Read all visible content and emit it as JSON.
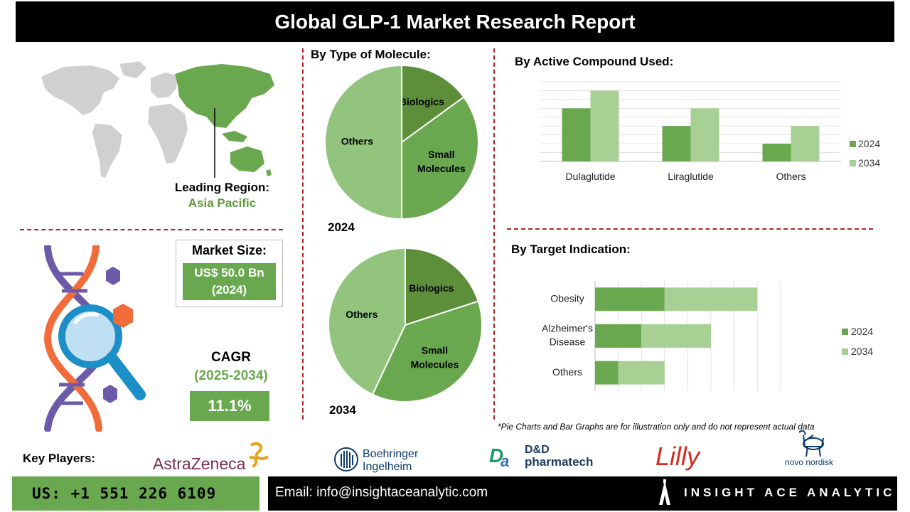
{
  "title": "Global GLP-1 Market Research Report",
  "region": {
    "label": "Leading Region:",
    "value": "Asia Pacific"
  },
  "market_size": {
    "label": "Market Size:",
    "value_line1": "US$ 50.0 Bn",
    "value_line2": "(2024)"
  },
  "cagr": {
    "label": "CAGR",
    "period": "(2025-2034)",
    "value": "11.1%"
  },
  "molecule": {
    "title": "By Type of Molecule:",
    "year_2024": "2024",
    "year_2034": "2034"
  },
  "compound": {
    "title": "By  Active Compound Used:"
  },
  "indication": {
    "title": "By Target  Indication:"
  },
  "footnote": "*Pie Charts and Bar Graphs are for illustration only and do not represent actual data",
  "key_players": {
    "label": "Key Players:",
    "astrazeneca": "AstraZeneca",
    "boehringer_1": "Boehringer",
    "boehringer_2": "Ingelheim",
    "dd_1": "D&D",
    "dd_2": "pharmatech",
    "lilly": "Lilly",
    "novo": "novo nordisk"
  },
  "contact": {
    "phone": "US: +1 551 226 6109",
    "email": "Email: info@insightaceanalytic.com",
    "brand": "INSIGHT ACE ANALYTIC"
  },
  "colors": {
    "dark_green": "#5d9a3c",
    "mid_green": "#6aa84f",
    "light_green": "#9fc98a",
    "accent_red": "#b22222"
  },
  "chart_data": [
    {
      "type": "pie",
      "name": "2024",
      "labels": [
        "Biologics",
        "Small Molecules",
        "Others"
      ],
      "label_lines": [
        [
          "Biologics"
        ],
        [
          "Small",
          "Molecules"
        ],
        [
          "Others"
        ]
      ],
      "values": [
        15,
        35,
        50
      ],
      "colors": [
        "#5d8f3a",
        "#6aa84f",
        "#93c47d"
      ]
    },
    {
      "type": "pie",
      "name": "2034",
      "labels": [
        "Biologics",
        "Small Molecules",
        "Others"
      ],
      "label_lines": [
        [
          "Biologics"
        ],
        [
          "Small",
          "Molecules"
        ],
        [
          "Others"
        ]
      ],
      "values": [
        20,
        37,
        43
      ],
      "colors": [
        "#5d8f3a",
        "#6aa84f",
        "#93c47d"
      ]
    },
    {
      "type": "bar",
      "title": "By  Active Compound Used:",
      "categories": [
        "Dulaglutide",
        "Liraglutide",
        "Others"
      ],
      "series": [
        {
          "name": "2024",
          "values": [
            3,
            2,
            1
          ],
          "color": "#6aa84f"
        },
        {
          "name": "2034",
          "values": [
            4,
            3,
            2
          ],
          "color": "#a8cf94"
        }
      ],
      "ylim": [
        0,
        4.5
      ],
      "grid": true,
      "legend": "right"
    },
    {
      "type": "bar",
      "orientation": "horizontal-stacked",
      "title": "By Target  Indication:",
      "categories": [
        [
          "Obesity"
        ],
        [
          "Alzheimer's",
          "Disease"
        ],
        [
          "Others"
        ]
      ],
      "series": [
        {
          "name": "2024",
          "values": [
            3,
            2,
            1
          ],
          "color": "#6aa84f"
        },
        {
          "name": "2034",
          "values": [
            4,
            3,
            2
          ],
          "color": "#a8cf94"
        }
      ],
      "xlim": [
        0,
        8
      ],
      "grid": true,
      "legend": "right"
    }
  ]
}
